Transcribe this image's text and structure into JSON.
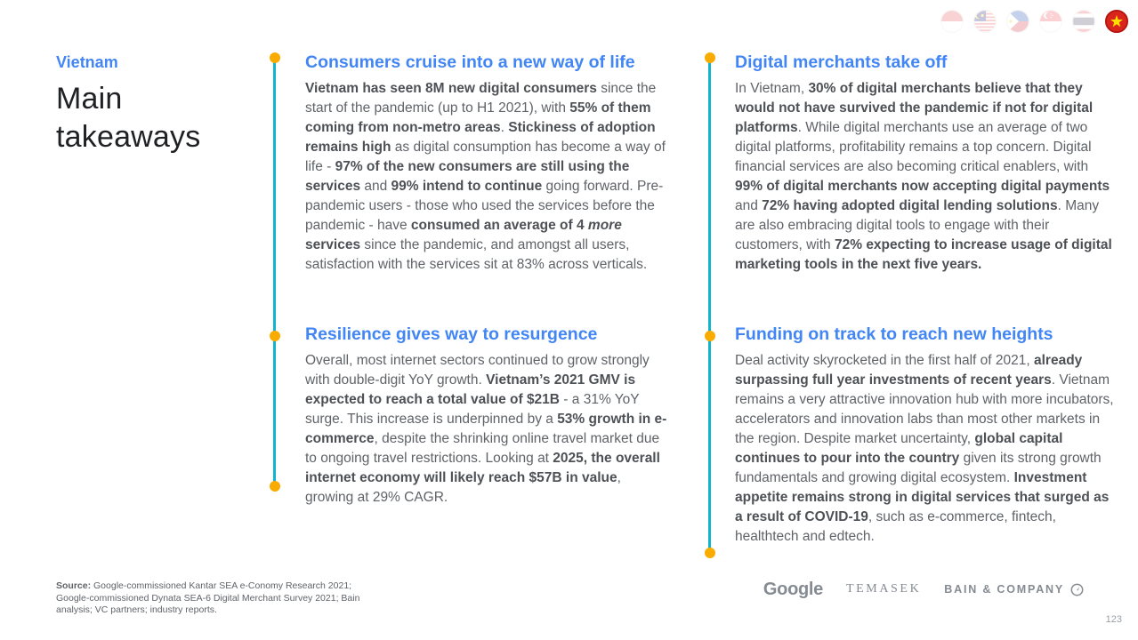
{
  "slide": {
    "kicker": "Vietnam",
    "title": "Main takeaways"
  },
  "flags": [
    {
      "country": "Indonesia",
      "active": false
    },
    {
      "country": "Malaysia",
      "active": false
    },
    {
      "country": "Philippines",
      "active": false
    },
    {
      "country": "Singapore",
      "active": false
    },
    {
      "country": "Thailand",
      "active": false
    },
    {
      "country": "Vietnam",
      "active": true
    }
  ],
  "sections": [
    {
      "title": "Consumers cruise into a new way of life",
      "segments": [
        {
          "t": "Vietnam has seen 8M new digital consumers",
          "b": true
        },
        {
          "t": " since the start of the pandemic (up to H1 2021), with "
        },
        {
          "t": "55% of them coming from non-metro areas",
          "b": true
        },
        {
          "t": ". "
        },
        {
          "t": "Stickiness of adoption remains high",
          "b": true
        },
        {
          "t": " as digital consumption has become a way of life - "
        },
        {
          "t": "97% of the new consumers are still using the services",
          "b": true
        },
        {
          "t": " and "
        },
        {
          "t": "99% intend to continue",
          "b": true
        },
        {
          "t": " going forward. Pre-pandemic users - those who used the services before the pandemic - have "
        },
        {
          "t": "consumed an average of 4 ",
          "b": true
        },
        {
          "t": "more",
          "b": true,
          "i": true
        },
        {
          "t": " services",
          "b": true
        },
        {
          "t": " since the pandemic, and amongst all users, satisfaction with the services sit at 83% across verticals."
        }
      ]
    },
    {
      "title": "Resilience gives way to resurgence",
      "segments": [
        {
          "t": "Overall, most internet sectors continued to grow strongly with double-digit YoY growth. "
        },
        {
          "t": "Vietnam’s 2021 GMV is expected to reach a total value of $21B",
          "b": true
        },
        {
          "t": " - a 31% YoY surge. This increase is underpinned by a "
        },
        {
          "t": "53% growth in e-commerce",
          "b": true
        },
        {
          "t": ", despite the shrinking online travel market due to ongoing travel restrictions. Looking at "
        },
        {
          "t": "2025, the overall internet economy will likely reach $57B in value",
          "b": true
        },
        {
          "t": ", growing at 29% CAGR."
        }
      ]
    },
    {
      "title": "Digital merchants take off",
      "segments": [
        {
          "t": "In Vietnam, "
        },
        {
          "t": "30% of digital merchants believe that they would not have survived the pandemic if not for digital platforms",
          "b": true
        },
        {
          "t": ". While digital merchants use an average of two digital platforms, profitability remains a top concern. Digital financial services are also becoming critical enablers, with "
        },
        {
          "t": "99% of digital merchants now accepting digital payments",
          "b": true
        },
        {
          "t": " and "
        },
        {
          "t": "72% having adopted digital lending solutions",
          "b": true
        },
        {
          "t": ". Many are also embracing digital tools to engage with their customers, with "
        },
        {
          "t": "72% expecting to increase usage of digital marketing tools in the next five years.",
          "b": true
        }
      ]
    },
    {
      "title": "Funding on track to reach new heights",
      "segments": [
        {
          "t": "Deal activity skyrocketed in the first half of 2021, "
        },
        {
          "t": "already surpassing full year investments of recent years",
          "b": true
        },
        {
          "t": ". Vietnam remains a very attractive innovation hub with more incubators, accelerators and innovation labs than most other markets in the region. Despite market uncertainty, "
        },
        {
          "t": "global capital continues to pour into the country",
          "b": true
        },
        {
          "t": " given its strong growth fundamentals and growing digital ecosystem. "
        },
        {
          "t": "Investment appetite remains strong in digital services that surged as a result of COVID-19",
          "b": true
        },
        {
          "t": ", such as e-commerce, fintech, healthtech and edtech."
        }
      ]
    }
  ],
  "footer": {
    "source_label": "Source:",
    "source_text": " Google-commissioned Kantar SEA e-Conomy Research 2021; Google-commissioned Dynata SEA-6 Digital Merchant Survey 2021; Bain analysis; VC partners; industry reports.",
    "logos": [
      "Google",
      "TEMASEK",
      "BAIN & COMPANY"
    ],
    "page_number": "123"
  },
  "colors": {
    "accent_blue": "#4285F4",
    "timeline_teal": "#12B5CB",
    "dot_yellow": "#F9AB00",
    "title_dark": "#202124",
    "body_gray": "#5F6368",
    "vietnam_flag_red": "#DA251D"
  }
}
